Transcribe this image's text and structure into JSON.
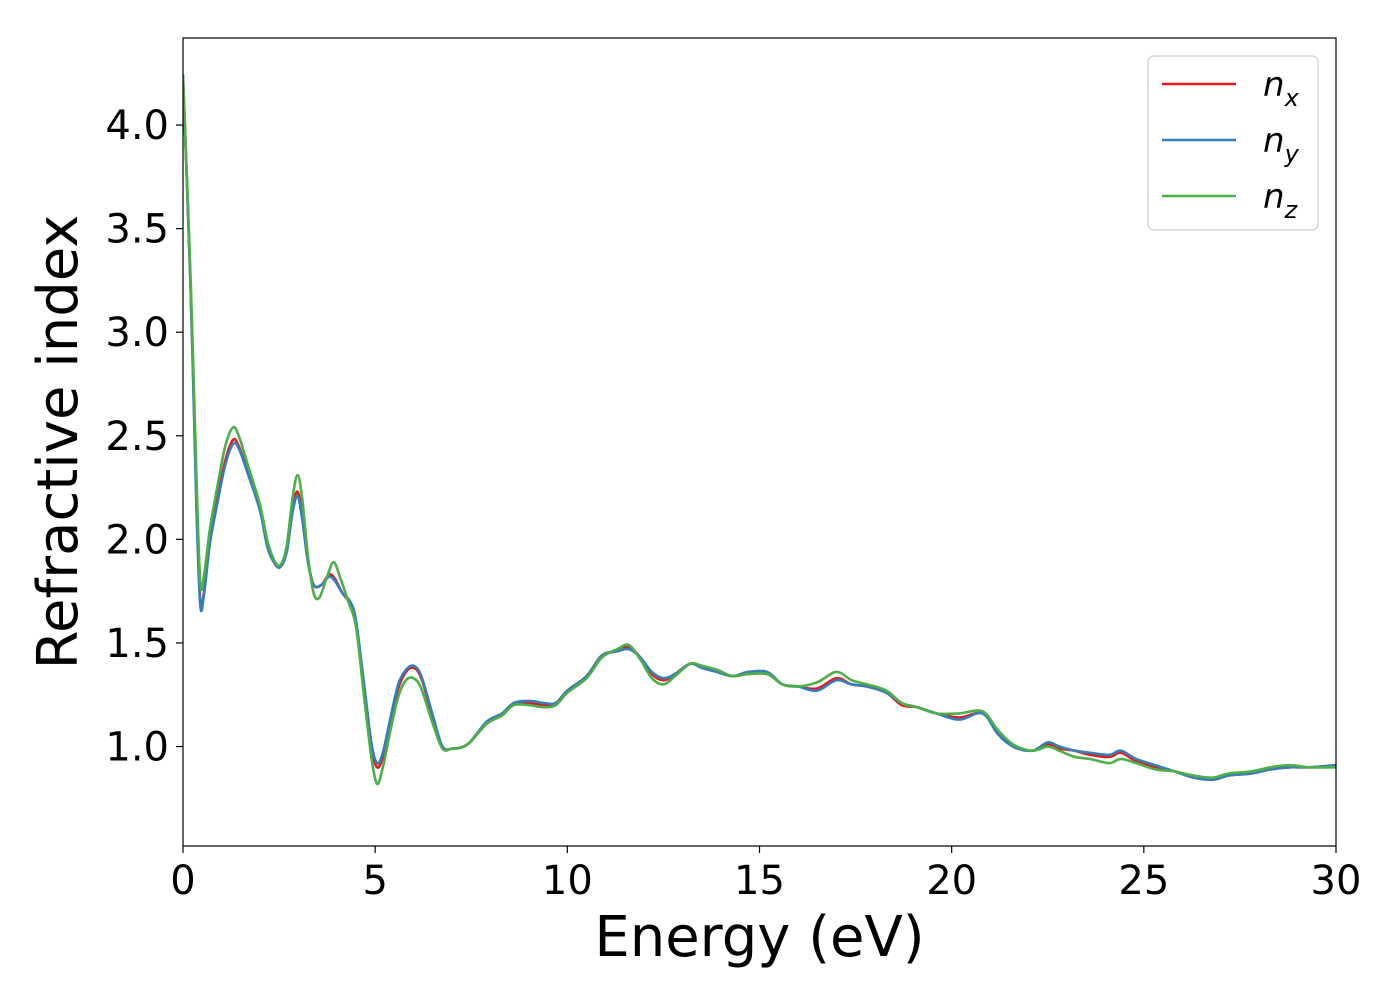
{
  "chart_data": {
    "type": "line",
    "title": "",
    "xlabel": "Energy (eV)",
    "ylabel": "Refractive index",
    "xlim": [
      0,
      30
    ],
    "ylim": [
      0.52,
      4.42
    ],
    "xticks": [
      0,
      5,
      10,
      15,
      20,
      25,
      30
    ],
    "yticks": [
      1.0,
      1.5,
      2.0,
      2.5,
      3.0,
      3.5,
      4.0
    ],
    "xtick_labels": [
      "0",
      "5",
      "10",
      "15",
      "20",
      "25",
      "30"
    ],
    "ytick_labels": [
      "1.0",
      "1.5",
      "2.0",
      "2.5",
      "3.0",
      "3.5",
      "4.0"
    ],
    "grid": false,
    "legend_position": "top-right",
    "series": [
      {
        "name_base": "n",
        "name_sub": "x",
        "color": "#e41a1c",
        "points": [
          [
            0,
            4.24
          ],
          [
            0.2,
            3.2
          ],
          [
            0.35,
            2.2
          ],
          [
            0.45,
            1.7
          ],
          [
            0.55,
            1.75
          ],
          [
            0.7,
            2.0
          ],
          [
            0.9,
            2.2
          ],
          [
            1.1,
            2.38
          ],
          [
            1.3,
            2.48
          ],
          [
            1.45,
            2.45
          ],
          [
            1.7,
            2.32
          ],
          [
            2.0,
            2.15
          ],
          [
            2.2,
            1.97
          ],
          [
            2.4,
            1.88
          ],
          [
            2.55,
            1.87
          ],
          [
            2.7,
            1.95
          ],
          [
            2.85,
            2.15
          ],
          [
            2.98,
            2.23
          ],
          [
            3.1,
            2.12
          ],
          [
            3.25,
            1.9
          ],
          [
            3.4,
            1.78
          ],
          [
            3.6,
            1.78
          ],
          [
            3.8,
            1.83
          ],
          [
            3.95,
            1.81
          ],
          [
            4.15,
            1.74
          ],
          [
            4.35,
            1.69
          ],
          [
            4.5,
            1.6
          ],
          [
            4.7,
            1.3
          ],
          [
            4.9,
            1.0
          ],
          [
            5.05,
            0.9
          ],
          [
            5.2,
            0.95
          ],
          [
            5.4,
            1.12
          ],
          [
            5.6,
            1.28
          ],
          [
            5.8,
            1.36
          ],
          [
            6.0,
            1.38
          ],
          [
            6.2,
            1.33
          ],
          [
            6.5,
            1.14
          ],
          [
            6.75,
            1.0
          ],
          [
            7.0,
            0.99
          ],
          [
            7.4,
            1.01
          ],
          [
            7.9,
            1.11
          ],
          [
            8.3,
            1.15
          ],
          [
            8.6,
            1.2
          ],
          [
            9.0,
            1.21
          ],
          [
            9.4,
            1.2
          ],
          [
            9.7,
            1.21
          ],
          [
            10.0,
            1.27
          ],
          [
            10.5,
            1.34
          ],
          [
            10.9,
            1.44
          ],
          [
            11.3,
            1.46
          ],
          [
            11.6,
            1.48
          ],
          [
            11.9,
            1.43
          ],
          [
            12.2,
            1.35
          ],
          [
            12.5,
            1.32
          ],
          [
            12.8,
            1.35
          ],
          [
            13.2,
            1.4
          ],
          [
            13.5,
            1.38
          ],
          [
            13.9,
            1.36
          ],
          [
            14.3,
            1.34
          ],
          [
            14.7,
            1.35
          ],
          [
            15.2,
            1.35
          ],
          [
            15.6,
            1.3
          ],
          [
            16.0,
            1.29
          ],
          [
            16.5,
            1.28
          ],
          [
            17.0,
            1.33
          ],
          [
            17.4,
            1.3
          ],
          [
            17.8,
            1.29
          ],
          [
            18.3,
            1.26
          ],
          [
            18.7,
            1.2
          ],
          [
            19.1,
            1.19
          ],
          [
            19.6,
            1.16
          ],
          [
            20.2,
            1.14
          ],
          [
            20.8,
            1.16
          ],
          [
            21.2,
            1.07
          ],
          [
            21.6,
            1.0
          ],
          [
            22.1,
            0.98
          ],
          [
            22.5,
            1.01
          ],
          [
            22.8,
            0.99
          ],
          [
            23.2,
            0.98
          ],
          [
            23.6,
            0.96
          ],
          [
            24.1,
            0.95
          ],
          [
            24.4,
            0.97
          ],
          [
            24.8,
            0.93
          ],
          [
            25.3,
            0.9
          ],
          [
            25.8,
            0.88
          ],
          [
            26.3,
            0.85
          ],
          [
            26.8,
            0.84
          ],
          [
            27.2,
            0.86
          ],
          [
            27.8,
            0.87
          ],
          [
            28.3,
            0.89
          ],
          [
            28.8,
            0.9
          ],
          [
            29.3,
            0.9
          ],
          [
            30,
            0.91
          ]
        ]
      },
      {
        "name_base": "n",
        "name_sub": "y",
        "color": "#377eb8",
        "points": [
          [
            0,
            4.24
          ],
          [
            0.2,
            3.2
          ],
          [
            0.35,
            2.15
          ],
          [
            0.45,
            1.68
          ],
          [
            0.55,
            1.74
          ],
          [
            0.7,
            1.98
          ],
          [
            0.9,
            2.18
          ],
          [
            1.1,
            2.36
          ],
          [
            1.3,
            2.46
          ],
          [
            1.45,
            2.44
          ],
          [
            1.7,
            2.31
          ],
          [
            2.0,
            2.14
          ],
          [
            2.2,
            1.96
          ],
          [
            2.4,
            1.88
          ],
          [
            2.55,
            1.87
          ],
          [
            2.7,
            1.94
          ],
          [
            2.85,
            2.13
          ],
          [
            2.98,
            2.21
          ],
          [
            3.1,
            2.1
          ],
          [
            3.25,
            1.89
          ],
          [
            3.4,
            1.78
          ],
          [
            3.6,
            1.78
          ],
          [
            3.8,
            1.82
          ],
          [
            3.95,
            1.8
          ],
          [
            4.15,
            1.74
          ],
          [
            4.35,
            1.7
          ],
          [
            4.5,
            1.61
          ],
          [
            4.7,
            1.32
          ],
          [
            4.9,
            1.02
          ],
          [
            5.05,
            0.92
          ],
          [
            5.2,
            0.97
          ],
          [
            5.4,
            1.14
          ],
          [
            5.6,
            1.3
          ],
          [
            5.8,
            1.37
          ],
          [
            6.0,
            1.39
          ],
          [
            6.2,
            1.34
          ],
          [
            6.5,
            1.15
          ],
          [
            6.75,
            1.0
          ],
          [
            7.0,
            0.99
          ],
          [
            7.4,
            1.01
          ],
          [
            7.9,
            1.12
          ],
          [
            8.3,
            1.16
          ],
          [
            8.6,
            1.21
          ],
          [
            9.0,
            1.22
          ],
          [
            9.4,
            1.21
          ],
          [
            9.7,
            1.21
          ],
          [
            10.0,
            1.27
          ],
          [
            10.5,
            1.34
          ],
          [
            10.9,
            1.44
          ],
          [
            11.3,
            1.46
          ],
          [
            11.6,
            1.47
          ],
          [
            11.9,
            1.43
          ],
          [
            12.2,
            1.36
          ],
          [
            12.5,
            1.33
          ],
          [
            12.8,
            1.35
          ],
          [
            13.2,
            1.4
          ],
          [
            13.5,
            1.38
          ],
          [
            13.9,
            1.36
          ],
          [
            14.3,
            1.34
          ],
          [
            14.7,
            1.36
          ],
          [
            15.2,
            1.36
          ],
          [
            15.6,
            1.3
          ],
          [
            16.0,
            1.29
          ],
          [
            16.5,
            1.27
          ],
          [
            17.0,
            1.32
          ],
          [
            17.4,
            1.3
          ],
          [
            17.8,
            1.29
          ],
          [
            18.3,
            1.26
          ],
          [
            18.7,
            1.21
          ],
          [
            19.1,
            1.19
          ],
          [
            19.6,
            1.16
          ],
          [
            20.2,
            1.13
          ],
          [
            20.8,
            1.16
          ],
          [
            21.2,
            1.06
          ],
          [
            21.6,
            1.0
          ],
          [
            22.1,
            0.98
          ],
          [
            22.5,
            1.02
          ],
          [
            22.8,
            1.0
          ],
          [
            23.2,
            0.98
          ],
          [
            23.6,
            0.97
          ],
          [
            24.1,
            0.96
          ],
          [
            24.4,
            0.98
          ],
          [
            24.8,
            0.94
          ],
          [
            25.3,
            0.91
          ],
          [
            25.8,
            0.88
          ],
          [
            26.3,
            0.85
          ],
          [
            26.8,
            0.84
          ],
          [
            27.2,
            0.86
          ],
          [
            27.8,
            0.87
          ],
          [
            28.3,
            0.89
          ],
          [
            28.8,
            0.9
          ],
          [
            29.3,
            0.9
          ],
          [
            30,
            0.91
          ]
        ]
      },
      {
        "name_base": "n",
        "name_sub": "z",
        "color": "#4daf4a",
        "points": [
          [
            0,
            4.24
          ],
          [
            0.2,
            3.25
          ],
          [
            0.35,
            2.3
          ],
          [
            0.45,
            1.79
          ],
          [
            0.55,
            1.83
          ],
          [
            0.7,
            2.05
          ],
          [
            0.9,
            2.26
          ],
          [
            1.1,
            2.45
          ],
          [
            1.3,
            2.54
          ],
          [
            1.45,
            2.5
          ],
          [
            1.7,
            2.35
          ],
          [
            2.0,
            2.17
          ],
          [
            2.2,
            1.99
          ],
          [
            2.4,
            1.89
          ],
          [
            2.55,
            1.88
          ],
          [
            2.7,
            1.97
          ],
          [
            2.85,
            2.2
          ],
          [
            2.98,
            2.31
          ],
          [
            3.1,
            2.2
          ],
          [
            3.25,
            1.92
          ],
          [
            3.4,
            1.74
          ],
          [
            3.55,
            1.72
          ],
          [
            3.75,
            1.82
          ],
          [
            3.92,
            1.89
          ],
          [
            4.1,
            1.81
          ],
          [
            4.3,
            1.7
          ],
          [
            4.5,
            1.58
          ],
          [
            4.7,
            1.26
          ],
          [
            4.9,
            0.95
          ],
          [
            5.05,
            0.82
          ],
          [
            5.2,
            0.9
          ],
          [
            5.4,
            1.08
          ],
          [
            5.6,
            1.24
          ],
          [
            5.8,
            1.32
          ],
          [
            6.0,
            1.33
          ],
          [
            6.2,
            1.28
          ],
          [
            6.5,
            1.11
          ],
          [
            6.75,
            0.99
          ],
          [
            7.0,
            0.99
          ],
          [
            7.4,
            1.01
          ],
          [
            7.9,
            1.11
          ],
          [
            8.3,
            1.15
          ],
          [
            8.6,
            1.2
          ],
          [
            9.0,
            1.2
          ],
          [
            9.4,
            1.19
          ],
          [
            9.7,
            1.2
          ],
          [
            10.0,
            1.26
          ],
          [
            10.5,
            1.33
          ],
          [
            10.9,
            1.43
          ],
          [
            11.3,
            1.47
          ],
          [
            11.6,
            1.49
          ],
          [
            11.9,
            1.42
          ],
          [
            12.2,
            1.33
          ],
          [
            12.5,
            1.3
          ],
          [
            12.8,
            1.34
          ],
          [
            13.2,
            1.4
          ],
          [
            13.5,
            1.39
          ],
          [
            13.9,
            1.37
          ],
          [
            14.3,
            1.34
          ],
          [
            14.7,
            1.35
          ],
          [
            15.2,
            1.35
          ],
          [
            15.6,
            1.3
          ],
          [
            16.0,
            1.29
          ],
          [
            16.5,
            1.31
          ],
          [
            17.0,
            1.36
          ],
          [
            17.4,
            1.32
          ],
          [
            17.8,
            1.3
          ],
          [
            18.3,
            1.27
          ],
          [
            18.7,
            1.21
          ],
          [
            19.1,
            1.19
          ],
          [
            19.6,
            1.16
          ],
          [
            20.2,
            1.16
          ],
          [
            20.8,
            1.17
          ],
          [
            21.2,
            1.08
          ],
          [
            21.6,
            1.01
          ],
          [
            22.1,
            0.98
          ],
          [
            22.5,
            1.0
          ],
          [
            22.8,
            0.98
          ],
          [
            23.2,
            0.95
          ],
          [
            23.6,
            0.94
          ],
          [
            24.1,
            0.92
          ],
          [
            24.4,
            0.94
          ],
          [
            24.8,
            0.92
          ],
          [
            25.3,
            0.89
          ],
          [
            25.8,
            0.88
          ],
          [
            26.3,
            0.86
          ],
          [
            26.8,
            0.85
          ],
          [
            27.2,
            0.87
          ],
          [
            27.8,
            0.88
          ],
          [
            28.3,
            0.9
          ],
          [
            28.8,
            0.91
          ],
          [
            29.3,
            0.9
          ],
          [
            30,
            0.9
          ]
        ]
      }
    ]
  }
}
